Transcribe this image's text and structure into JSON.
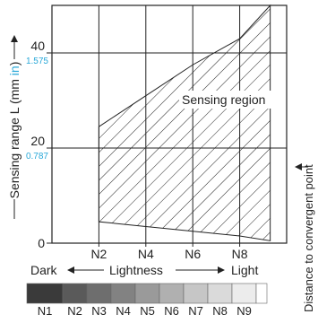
{
  "chart_data": {
    "type": "area",
    "ylabel": "Sensing range L (mm",
    "ylabel_inch": "in",
    "ylabel_close": ")",
    "right_label": "Distance to convergent point",
    "region_label": "Sensing region",
    "y_ticks": [
      {
        "value": 0,
        "label": "0",
        "inch": ""
      },
      {
        "value": 20,
        "label": "20",
        "inch": "0.787"
      },
      {
        "value": 40,
        "label": "40",
        "inch": "1.575"
      }
    ],
    "ylim": [
      0,
      50
    ],
    "x_ticks": [
      "N2",
      "N4",
      "N6",
      "N8"
    ],
    "x_tick_positions": [
      2,
      4,
      6,
      8
    ],
    "xlim": [
      0,
      10
    ],
    "grid": true,
    "region_upper": [
      {
        "x": 2,
        "y": 24.5
      },
      {
        "x": 4,
        "y": 31
      },
      {
        "x": 6,
        "y": 37.5
      },
      {
        "x": 8,
        "y": 43
      },
      {
        "x": 9.3,
        "y": 50
      }
    ],
    "region_lower": [
      {
        "x": 2,
        "y": 4.5
      },
      {
        "x": 4,
        "y": 3.5
      },
      {
        "x": 6,
        "y": 2.5
      },
      {
        "x": 8,
        "y": 1.5
      },
      {
        "x": 9.3,
        "y": 0.5
      }
    ],
    "lightness_dark": "Dark",
    "lightness_label": "Lightness",
    "lightness_light": "Light",
    "scale_labels": [
      "N1",
      "N2",
      "N3",
      "N4",
      "N5",
      "N6",
      "N7",
      "N8",
      "N9"
    ],
    "scale_colors": [
      "#3a3a3a",
      "#5a5a5a",
      "#6e6e6e",
      "#828282",
      "#9a9a9a",
      "#b0b0b0",
      "#c6c6c6",
      "#dadada",
      "#ececec",
      "#ffffff"
    ],
    "inch_color": "#29a8d8"
  }
}
